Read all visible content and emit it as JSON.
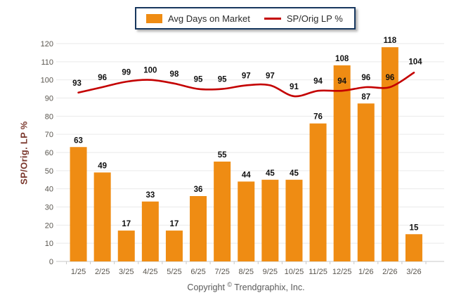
{
  "legend": {
    "bar_label": "Avg Days on Market",
    "line_label": "SP/Orig LP %"
  },
  "y_axis_title": "SP/Orig. LP %",
  "footer": {
    "text_before": "Copyright",
    "symbol": "©",
    "text_after": " Trendgraphix, Inc."
  },
  "colors": {
    "bar": "#EF8C13",
    "line": "#C40000",
    "grid": "#E9E9E9",
    "axis_line": "#C9C9C9",
    "tick_label": "#5a564f",
    "data_label": "#111111",
    "y_axis_title": "#7a372c",
    "legend_border": "#17375E"
  },
  "chart_data": {
    "type": "bar",
    "subtype": "bar-with-line-overlay",
    "categories": [
      "1/25",
      "2/25",
      "3/25",
      "4/25",
      "5/25",
      "6/25",
      "7/25",
      "8/25",
      "9/25",
      "10/25",
      "11/25",
      "12/25",
      "1/26",
      "2/26",
      "3/26"
    ],
    "series": [
      {
        "name": "Avg Days on Market",
        "type": "bar",
        "color": "#EF8C13",
        "values": [
          63,
          49,
          17,
          33,
          17,
          36,
          55,
          44,
          45,
          45,
          76,
          108,
          87,
          118,
          15
        ]
      },
      {
        "name": "SP/Orig LP %",
        "type": "line",
        "color": "#C40000",
        "values": [
          93,
          96,
          99,
          100,
          98,
          95,
          95,
          97,
          97,
          91,
          94,
          94,
          96,
          96,
          104
        ]
      }
    ],
    "title": "",
    "xlabel": "",
    "ylabel": "SP/Orig. LP %",
    "ylim": [
      0,
      120
    ],
    "ytick_step": 10,
    "grid": true,
    "legend_position": "top-center",
    "data_labels": true
  }
}
